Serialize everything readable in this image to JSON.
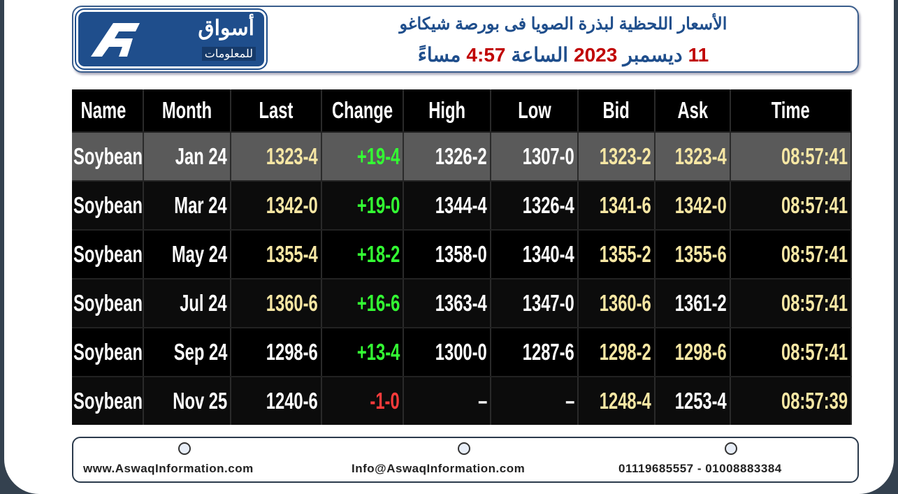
{
  "header": {
    "logo_title": "أسواق",
    "logo_subtitle": "للمعلومات",
    "title": "الأسعار اللحظية لبذرة الصويا فى بورصة شيكاغو",
    "subtitle_parts": [
      {
        "text": "11",
        "color": "#c00000"
      },
      {
        "text": "ديسمبر",
        "color": "#1f4e8c"
      },
      {
        "text": "2023",
        "color": "#c00000"
      },
      {
        "text": "الساعة",
        "color": "#1f4e8c"
      },
      {
        "text": "4:57",
        "color": "#c00000"
      },
      {
        "text": "مساءً",
        "color": "#1f4e8c"
      }
    ]
  },
  "table": {
    "columns": [
      "Name",
      "Month",
      "Last",
      "Change",
      "High",
      "Low",
      "Bid",
      "Ask",
      "Time"
    ],
    "rows": [
      [
        "Soybean",
        "Jan 24",
        "1323-4",
        "+19-4",
        "1326-2",
        "1307-0",
        "1323-2",
        "1323-4",
        "08:57:41"
      ],
      [
        "Soybean",
        "Mar 24",
        "1342-0",
        "+19-0",
        "1344-4",
        "1326-4",
        "1341-6",
        "1342-0",
        "08:57:41"
      ],
      [
        "Soybean",
        "May 24",
        "1355-4",
        "+18-2",
        "1358-0",
        "1340-4",
        "1355-2",
        "1355-6",
        "08:57:41"
      ],
      [
        "Soybean",
        "Jul 24",
        "1360-6",
        "+16-6",
        "1363-4",
        "1347-0",
        "1360-6",
        "1361-2",
        "08:57:41"
      ],
      [
        "Soybean",
        "Sep 24",
        "1298-6",
        "+13-4",
        "1300-0",
        "1287-6",
        "1298-2",
        "1298-6",
        "08:57:41"
      ],
      [
        "Soybean",
        "Nov 25",
        "1240-6",
        "-1-0",
        "–",
        "–",
        "1248-4",
        "1253-4",
        "08:57:39"
      ]
    ],
    "cell_colors": [
      [
        "#ffffff",
        "#ffffff",
        "#f7e7a4",
        "#33ff33",
        "#ffffff",
        "#ffffff",
        "#f7e7a4",
        "#f7e7a4",
        "#f7e7a4"
      ],
      [
        "#ffffff",
        "#ffffff",
        "#f7e7a4",
        "#33ff33",
        "#ffffff",
        "#ffffff",
        "#f7e7a4",
        "#f7e7a4",
        "#f7e7a4"
      ],
      [
        "#ffffff",
        "#ffffff",
        "#f7e7a4",
        "#33ff33",
        "#ffffff",
        "#ffffff",
        "#f7e7a4",
        "#f7e7a4",
        "#f7e7a4"
      ],
      [
        "#ffffff",
        "#ffffff",
        "#f7e7a4",
        "#33ff33",
        "#ffffff",
        "#ffffff",
        "#f7e7a4",
        "#ffffff",
        "#f7e7a4"
      ],
      [
        "#ffffff",
        "#ffffff",
        "#ffffff",
        "#33ff33",
        "#ffffff",
        "#ffffff",
        "#f7e7a4",
        "#f7e7a4",
        "#f7e7a4"
      ],
      [
        "#ffffff",
        "#ffffff",
        "#ffffff",
        "#ff3b3b",
        "#ffffff",
        "#ffffff",
        "#f7e7a4",
        "#ffffff",
        "#f7e7a4"
      ]
    ]
  },
  "footer": {
    "website": "www.AswaqInformation.com",
    "email": "Info@AswaqInformation.com",
    "phone": "01119685557 - 01008883384"
  }
}
